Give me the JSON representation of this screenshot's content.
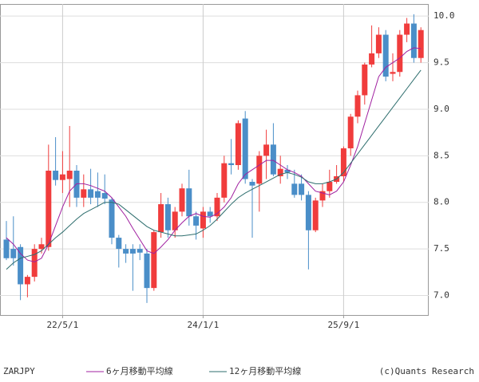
{
  "chart_data": {
    "type": "candlestick",
    "title": "ZARJPY",
    "copyright": "(c)Quants Research",
    "categories": [
      null,
      null,
      null,
      null,
      null,
      null,
      null,
      null,
      "22/5/1",
      null,
      null,
      null,
      null,
      null,
      null,
      null,
      null,
      null,
      null,
      null,
      null,
      null,
      null,
      null,
      null,
      null,
      null,
      null,
      "24/1/1",
      null,
      null,
      null,
      null,
      null,
      null,
      null,
      null,
      null,
      null,
      null,
      null,
      null,
      null,
      null,
      null,
      null,
      null,
      null,
      "25/9/1",
      null,
      null,
      null,
      null,
      null,
      null,
      null,
      null,
      null,
      null,
      null
    ],
    "open": [
      7.6,
      7.5,
      7.52,
      7.12,
      7.2,
      7.5,
      7.52,
      8.34,
      8.24,
      8.25,
      8.34,
      8.05,
      8.14,
      8.12,
      8.1,
      8.03,
      7.62,
      7.5,
      7.5,
      7.5,
      7.45,
      7.08,
      7.68,
      7.98,
      7.7,
      7.9,
      8.15,
      7.85,
      7.72,
      7.9,
      7.85,
      8.05,
      8.42,
      8.4,
      8.9,
      8.22,
      8.2,
      8.5,
      8.62,
      8.28,
      8.35,
      8.2,
      8.2,
      8.08,
      7.7,
      8.02,
      8.12,
      8.22,
      8.28,
      8.58,
      8.92,
      9.15,
      9.48,
      9.6,
      9.8,
      9.38,
      9.4,
      9.8,
      9.92,
      9.55
    ],
    "high": [
      7.8,
      7.85,
      7.55,
      7.22,
      7.55,
      7.62,
      8.62,
      8.7,
      8.55,
      8.82,
      8.4,
      8.3,
      8.36,
      8.32,
      8.3,
      8.05,
      7.65,
      7.55,
      7.55,
      7.55,
      7.5,
      7.7,
      8.1,
      8.05,
      7.95,
      8.2,
      8.35,
      7.9,
      7.95,
      7.95,
      8.1,
      8.5,
      8.68,
      8.88,
      8.98,
      8.25,
      8.55,
      8.78,
      8.85,
      8.5,
      8.4,
      8.35,
      8.3,
      8.12,
      8.05,
      8.2,
      8.35,
      8.4,
      8.6,
      8.95,
      9.2,
      9.5,
      9.9,
      9.88,
      9.85,
      9.6,
      9.85,
      9.98,
      10.02,
      9.88
    ],
    "low": [
      7.38,
      7.32,
      6.95,
      6.98,
      7.15,
      7.45,
      7.48,
      8.18,
      8.1,
      7.95,
      7.95,
      7.95,
      7.98,
      7.95,
      7.98,
      7.55,
      7.3,
      7.35,
      7.05,
      7.38,
      6.92,
      7.05,
      7.62,
      7.62,
      7.62,
      7.85,
      7.75,
      7.6,
      7.62,
      7.78,
      7.8,
      8.0,
      8.3,
      8.35,
      8.2,
      7.62,
      7.9,
      8.25,
      8.28,
      8.2,
      8.25,
      8.05,
      8.02,
      7.28,
      7.68,
      7.95,
      8.05,
      8.2,
      8.22,
      8.5,
      8.85,
      9.05,
      9.45,
      9.55,
      9.3,
      9.3,
      9.35,
      9.72,
      9.5,
      9.5
    ],
    "close": [
      7.4,
      7.4,
      7.12,
      7.2,
      7.5,
      7.55,
      8.34,
      8.24,
      8.3,
      8.34,
      8.05,
      8.14,
      8.05,
      8.05,
      8.04,
      7.62,
      7.5,
      7.45,
      7.45,
      7.46,
      7.08,
      7.68,
      7.98,
      7.7,
      7.9,
      8.15,
      7.85,
      7.75,
      7.9,
      7.85,
      8.05,
      8.42,
      8.4,
      8.85,
      8.25,
      8.18,
      8.5,
      8.62,
      8.3,
      8.36,
      8.32,
      8.08,
      8.08,
      7.7,
      8.02,
      8.12,
      8.22,
      8.28,
      8.58,
      8.92,
      9.15,
      9.48,
      9.6,
      9.8,
      9.35,
      9.4,
      9.8,
      9.92,
      9.55,
      9.85
    ],
    "up_color": "#f03c3c",
    "down_color": "#4a8ec8",
    "lines": [
      {
        "name": "6ヶ月移動平均線",
        "color": "#a020a0",
        "values": [
          7.62,
          7.55,
          7.45,
          7.38,
          7.36,
          7.4,
          7.55,
          7.75,
          7.95,
          8.12,
          8.2,
          8.2,
          8.18,
          8.15,
          8.12,
          8.05,
          7.95,
          7.85,
          7.72,
          7.6,
          7.48,
          7.45,
          7.52,
          7.6,
          7.7,
          7.78,
          7.85,
          7.88,
          7.85,
          7.84,
          7.88,
          7.95,
          8.05,
          8.2,
          8.3,
          8.35,
          8.4,
          8.45,
          8.45,
          8.4,
          8.35,
          8.32,
          8.28,
          8.2,
          8.12,
          8.1,
          8.08,
          8.12,
          8.22,
          8.4,
          8.6,
          8.85,
          9.1,
          9.35,
          9.45,
          9.5,
          9.55,
          9.62,
          9.66,
          9.65
        ]
      },
      {
        "name": "12ヶ月移動平均線",
        "color": "#2e6e6e",
        "values": [
          7.28,
          7.35,
          7.4,
          7.42,
          7.44,
          7.48,
          7.55,
          7.62,
          7.68,
          7.75,
          7.82,
          7.88,
          7.92,
          7.96,
          8.0,
          8.0,
          7.98,
          7.92,
          7.86,
          7.8,
          7.74,
          7.7,
          7.68,
          7.66,
          7.64,
          7.64,
          7.65,
          7.66,
          7.7,
          7.75,
          7.82,
          7.9,
          7.98,
          8.05,
          8.1,
          8.14,
          8.18,
          8.22,
          8.26,
          8.3,
          8.32,
          8.3,
          8.27,
          8.22,
          8.2,
          8.2,
          8.22,
          8.25,
          8.32,
          8.42,
          8.52,
          8.62,
          8.72,
          8.82,
          8.92,
          9.02,
          9.12,
          9.22,
          9.32,
          9.42
        ]
      }
    ],
    "ylim": [
      6.79,
      10.13
    ],
    "yticks": [
      {
        "value": 7,
        "label": "7.0"
      },
      {
        "value": 7.5,
        "label": "7.5"
      },
      {
        "value": 8,
        "label": "8.0"
      },
      {
        "value": 8.5,
        "label": "8.5"
      },
      {
        "value": 9,
        "label": "9.0"
      },
      {
        "value": 9.5,
        "label": "9.5"
      },
      {
        "value": 10,
        "label": "10.0"
      }
    ],
    "grid": true
  }
}
